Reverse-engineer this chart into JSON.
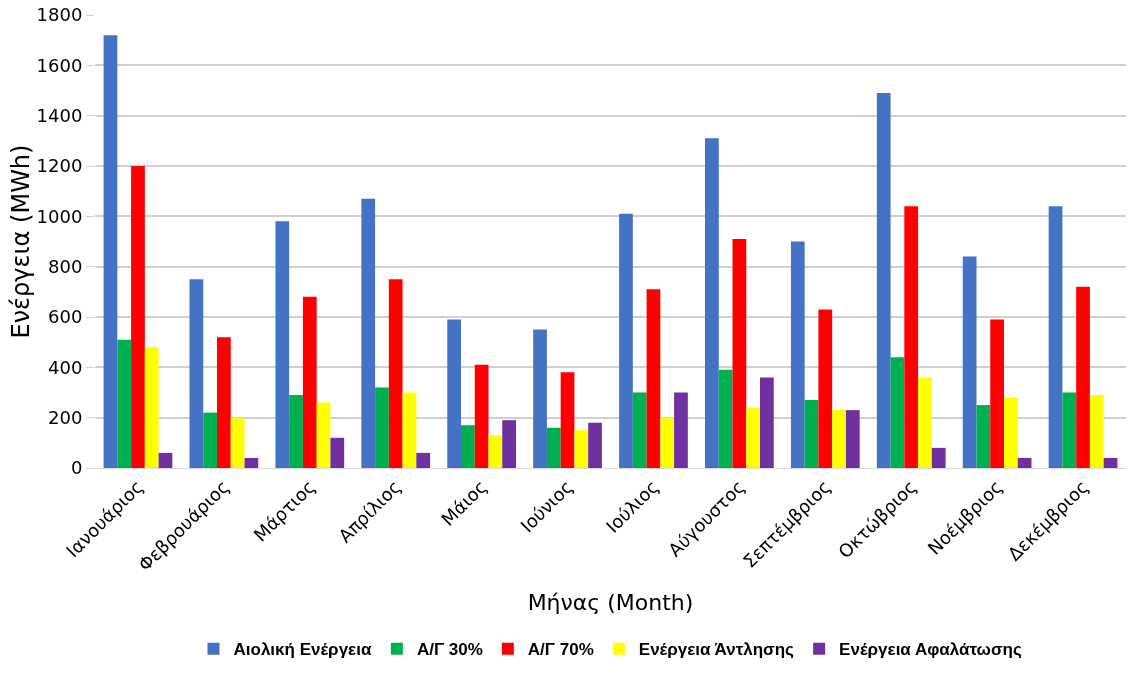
{
  "chart_data": {
    "type": "bar",
    "xlabel": "Μήνας (Month)",
    "ylabel": "Ενέργεια (MWh)",
    "categories": [
      "Ιανουάριος",
      "Φεβρουάριος",
      "Μάρτιος",
      "Απρίλιος",
      "Μάιος",
      "Ιούνιος",
      "Ιούλιος",
      "Αύγουστος",
      "Σεπτέμβριος",
      "Οκτώβριος",
      "Νοέμβριος",
      "Δεκέμβριος"
    ],
    "series": [
      {
        "name": "Αιολική Ενέργεια",
        "color": "#4472c4",
        "values": [
          1720,
          750,
          980,
          1070,
          590,
          550,
          1010,
          1310,
          900,
          1490,
          840,
          1040
        ]
      },
      {
        "name": "Α/Γ 30%",
        "color": "#00b050",
        "values": [
          510,
          220,
          290,
          320,
          170,
          160,
          300,
          390,
          270,
          440,
          250,
          300
        ]
      },
      {
        "name": "Α/Γ 70%",
        "color": "#ff0000",
        "values": [
          1200,
          520,
          680,
          750,
          410,
          380,
          710,
          910,
          630,
          1040,
          590,
          720
        ]
      },
      {
        "name": "Ενέργεια Άντλησης",
        "color": "#ffff00",
        "values": [
          480,
          200,
          260,
          300,
          130,
          150,
          200,
          240,
          230,
          360,
          280,
          290
        ]
      },
      {
        "name": "Ενέργεια Αφαλάτωσης",
        "color": "#7030a0",
        "values": [
          60,
          40,
          120,
          60,
          190,
          180,
          300,
          360,
          230,
          80,
          40,
          40
        ]
      }
    ],
    "ylim": [
      0,
      1800
    ],
    "yticks": [
      0,
      200,
      400,
      600,
      800,
      1000,
      1200,
      1400,
      1600,
      1800
    ],
    "grid": "y",
    "legend": "bottom"
  }
}
